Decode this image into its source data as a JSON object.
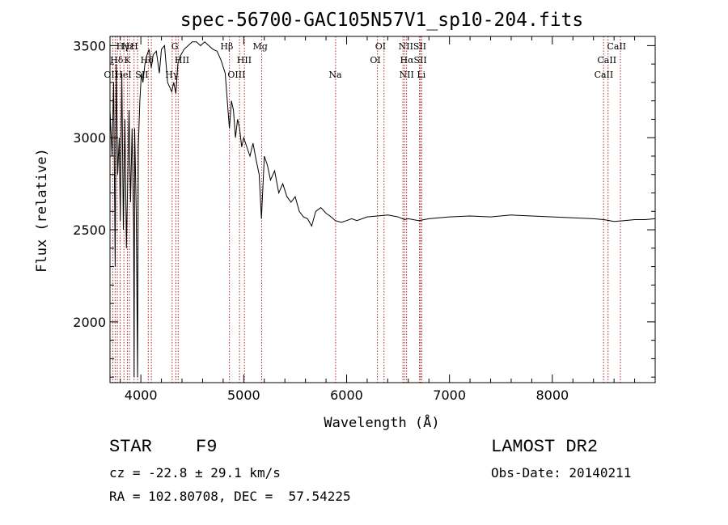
{
  "chart_data": {
    "type": "line",
    "title": "spec-56700-GAC105N57V1_sp10-204.fits",
    "xlabel": "Wavelength (Å)",
    "ylabel": "Flux (relative)",
    "xlim": [
      3700,
      9000
    ],
    "ylim": [
      1670,
      3550
    ],
    "x_ticks": [
      4000,
      5000,
      6000,
      7000,
      8000
    ],
    "y_ticks": [
      2000,
      2500,
      3000,
      3500
    ],
    "grid": false,
    "series": [
      {
        "name": "spectrum",
        "x": [
          3700,
          3720,
          3735,
          3750,
          3760,
          3775,
          3790,
          3800,
          3815,
          3830,
          3845,
          3860,
          3870,
          3885,
          3900,
          3915,
          3930,
          3934,
          3940,
          3955,
          3968,
          3975,
          3990,
          4005,
          4020,
          4040,
          4060,
          4080,
          4101,
          4120,
          4150,
          4180,
          4200,
          4230,
          4260,
          4300,
          4320,
          4340,
          4360,
          4380,
          4420,
          4460,
          4500,
          4540,
          4580,
          4620,
          4660,
          4700,
          4740,
          4780,
          4820,
          4861,
          4880,
          4900,
          4920,
          4940,
          4960,
          4980,
          5000,
          5030,
          5060,
          5090,
          5120,
          5150,
          5172,
          5200,
          5230,
          5260,
          5300,
          5340,
          5380,
          5420,
          5460,
          5500,
          5540,
          5580,
          5620,
          5660,
          5700,
          5750,
          5800,
          5850,
          5890,
          5950,
          6000,
          6050,
          6100,
          6200,
          6300,
          6400,
          6500,
          6563,
          6600,
          6700,
          6800,
          6900,
          7000,
          7200,
          7400,
          7600,
          7800,
          8000,
          8200,
          8400,
          8500,
          8600,
          8700,
          8800,
          8900,
          9000
        ],
        "y": [
          3150,
          2900,
          3300,
          2300,
          3400,
          2800,
          3000,
          2550,
          3350,
          2500,
          3100,
          2400,
          2700,
          3150,
          2650,
          3050,
          2500,
          1700,
          3050,
          2600,
          1700,
          2950,
          3200,
          3350,
          3300,
          3400,
          3450,
          3480,
          3380,
          3450,
          3470,
          3350,
          3480,
          3500,
          3300,
          3250,
          3300,
          3240,
          3400,
          3440,
          3480,
          3500,
          3520,
          3520,
          3500,
          3520,
          3500,
          3480,
          3470,
          3420,
          3350,
          3050,
          3200,
          3150,
          3000,
          3100,
          3050,
          2950,
          3000,
          2950,
          2900,
          2970,
          2880,
          2800,
          2560,
          2900,
          2850,
          2770,
          2820,
          2700,
          2750,
          2680,
          2650,
          2680,
          2600,
          2570,
          2560,
          2520,
          2600,
          2620,
          2590,
          2570,
          2550,
          2540,
          2550,
          2560,
          2550,
          2570,
          2575,
          2580,
          2570,
          2555,
          2560,
          2550,
          2560,
          2565,
          2570,
          2575,
          2570,
          2580,
          2575,
          2570,
          2565,
          2560,
          2555,
          2545,
          2550,
          2555,
          2555,
          2560
        ]
      }
    ],
    "line_labels": [
      {
        "name": "Hγ",
        "tier": 1,
        "x_label": 3825
      },
      {
        "name": "Hε",
        "tier": 1,
        "x_label": 3875
      },
      {
        "name": "H",
        "tier": 1,
        "x_label": 3935
      },
      {
        "name": "Hδ",
        "tier": 2,
        "x_label": 3765
      },
      {
        "name": "K",
        "tier": 2,
        "x_label": 3870
      },
      {
        "name": "Hδ",
        "tier": 2,
        "x_label": 4060
      },
      {
        "name": "OII",
        "tier": 3,
        "x_label": 3710
      },
      {
        "name": "HeI",
        "tier": 3,
        "x_label": 3830
      },
      {
        "name": "SII",
        "tier": 3,
        "x_label": 4010
      },
      {
        "name": "G",
        "tier": 1,
        "x_label": 4330
      },
      {
        "name": "HII",
        "tier": 2,
        "x_label": 4400
      },
      {
        "name": "Hγ",
        "tier": 3,
        "x_label": 4300
      },
      {
        "name": "Hβ",
        "tier": 1,
        "x_label": 4835
      },
      {
        "name": "HII",
        "tier": 2,
        "x_label": 5005
      },
      {
        "name": "OIII",
        "tier": 3,
        "x_label": 4930
      },
      {
        "name": "Mg",
        "tier": 1,
        "x_label": 5160
      },
      {
        "name": "Na",
        "tier": 3,
        "x_label": 5890
      },
      {
        "name": "OI",
        "tier": 1,
        "x_label": 6330
      },
      {
        "name": "OI",
        "tier": 2,
        "x_label": 6280
      },
      {
        "name": "NIISII",
        "tier": 1,
        "x_label": 6640
      },
      {
        "name": "HαSII",
        "tier": 2,
        "x_label": 6650
      },
      {
        "name": "NII Li",
        "tier": 3,
        "x_label": 6640
      },
      {
        "name": "CaII",
        "tier": 1,
        "x_label": 8625
      },
      {
        "name": "CaII",
        "tier": 2,
        "x_label": 8530
      },
      {
        "name": "CaII",
        "tier": 3,
        "x_label": 8500
      }
    ],
    "line_markers": [
      3727,
      3750,
      3771,
      3798,
      3835,
      3869,
      3889,
      3934,
      3968,
      4072,
      4102,
      4304,
      4340,
      4363,
      4861,
      4959,
      5007,
      5175,
      5893,
      6300,
      6364,
      6548,
      6563,
      6583,
      6708,
      6717,
      6731,
      8498,
      8542,
      8662
    ]
  },
  "info": {
    "object_class": "STAR",
    "subclass": "F9",
    "redshift": "cz = -22.8 ± 29.1 km/s",
    "coords": "RA = 102.80708, DEC =  57.54225",
    "survey": "LAMOST DR2",
    "obs_date": "Obs-Date: 20140211"
  }
}
